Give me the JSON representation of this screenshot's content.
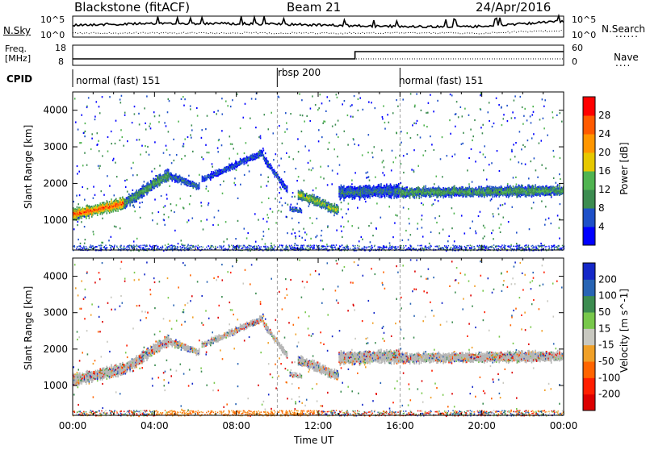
{
  "header": {
    "station": "Blackstone (fitACF)",
    "beam": "Beam 21",
    "date": "24/Apr/2016"
  },
  "noise_panel": {
    "left_label": "N.Sky",
    "right_label": "N.Search",
    "right_dots": "......",
    "left_ticks": [
      "10^5",
      "10^0"
    ],
    "right_ticks": [
      "10^5",
      "10^0"
    ]
  },
  "freq_panel": {
    "left_label_1": "Freq.",
    "left_label_2": "[MHz]",
    "left_ticks": [
      "18",
      "8"
    ],
    "right_label": "Nave",
    "right_dots": "....",
    "right_ticks": [
      "60",
      "0"
    ]
  },
  "cpid": {
    "label": "CPID",
    "segments": [
      {
        "label": "normal (fast) 151",
        "start_hour": 0
      },
      {
        "label": "rbsp 200",
        "start_hour": 10
      },
      {
        "label": "normal (fast) 151",
        "start_hour": 16
      }
    ]
  },
  "colors": {
    "power_scale": [
      "#0000ff",
      "#1e50c8",
      "#3c8c50",
      "#50b450",
      "#e6c800",
      "#ff9600",
      "#ff5a00",
      "#ff0000"
    ],
    "velocity_scale": [
      "#1428c8",
      "#2864b4",
      "#3c8c50",
      "#78c84b",
      "#c8c8c0",
      "#f0a028",
      "#ff6400",
      "#ff1e00",
      "#dc0000"
    ],
    "ground_scatter": "#b4b4b4"
  },
  "chart_data": [
    {
      "type": "heatmap",
      "title": "Power",
      "xlabel": "",
      "ylabel": "Slant Range [km]",
      "xlim": [
        0,
        24
      ],
      "ylim": [
        180,
        4500
      ],
      "yticks": [
        1000,
        2000,
        3000,
        4000
      ],
      "colorbar_label": "Power [dB]",
      "colorbar_ticks": [
        "28",
        "24",
        "20",
        "16",
        "12",
        "8",
        "4"
      ],
      "colorbar_range": [
        0,
        30
      ],
      "mode_boundaries_hours": [
        10,
        16
      ],
      "echo_bands": [
        {
          "hour_start": 0.0,
          "hour_end": 2.5,
          "range_center": [
            1150,
            1450
          ],
          "thickness_km": 300,
          "peak_power_db": 26
        },
        {
          "hour_start": 2.5,
          "hour_end": 4.7,
          "range_center": [
            1450,
            2250
          ],
          "thickness_km": 280,
          "peak_power_db": 12
        },
        {
          "hour_start": 4.7,
          "hour_end": 6.2,
          "range_center": [
            2200,
            1900
          ],
          "thickness_km": 180,
          "peak_power_db": 8
        },
        {
          "hour_start": 6.3,
          "hour_end": 9.3,
          "range_center": [
            2100,
            2850
          ],
          "thickness_km": 160,
          "peak_power_db": 6
        },
        {
          "hour_start": 9.3,
          "hour_end": 10.5,
          "range_center": [
            2700,
            1800
          ],
          "thickness_km": 160,
          "peak_power_db": 6
        },
        {
          "hour_start": 10.6,
          "hour_end": 11.2,
          "range_center": [
            1300,
            1250
          ],
          "thickness_km": 120,
          "peak_power_db": 8
        },
        {
          "hour_start": 11.0,
          "hour_end": 13.0,
          "range_center": [
            1700,
            1250
          ],
          "thickness_km": 250,
          "peak_power_db": 16
        },
        {
          "hour_start": 13.0,
          "hour_end": 16.0,
          "range_center": [
            1750,
            1800
          ],
          "thickness_km": 320,
          "peak_power_db": 8
        },
        {
          "hour_start": 16.0,
          "hour_end": 24.0,
          "range_center": [
            1750,
            1800
          ],
          "thickness_km": 260,
          "peak_power_db": 12
        }
      ]
    },
    {
      "type": "heatmap",
      "title": "Velocity",
      "xlabel": "Time UT",
      "ylabel": "Slant Range [km]",
      "xlim": [
        0,
        24
      ],
      "ylim": [
        180,
        4500
      ],
      "yticks": [
        1000,
        2000,
        3000,
        4000
      ],
      "xticks": [
        "00:00",
        "04:00",
        "08:00",
        "12:00",
        "16:00",
        "20:00",
        "00:00"
      ],
      "colorbar_label": "Velocity [m s^-1]",
      "colorbar_ticks": [
        "200",
        "100",
        "50",
        "15",
        "-15",
        "-50",
        "-100",
        "-200"
      ],
      "colorbar_range": [
        -250,
        250
      ],
      "mode_boundaries_hours": [
        10,
        16
      ],
      "dominant_velocity_m_s": [
        -15,
        15
      ]
    }
  ]
}
